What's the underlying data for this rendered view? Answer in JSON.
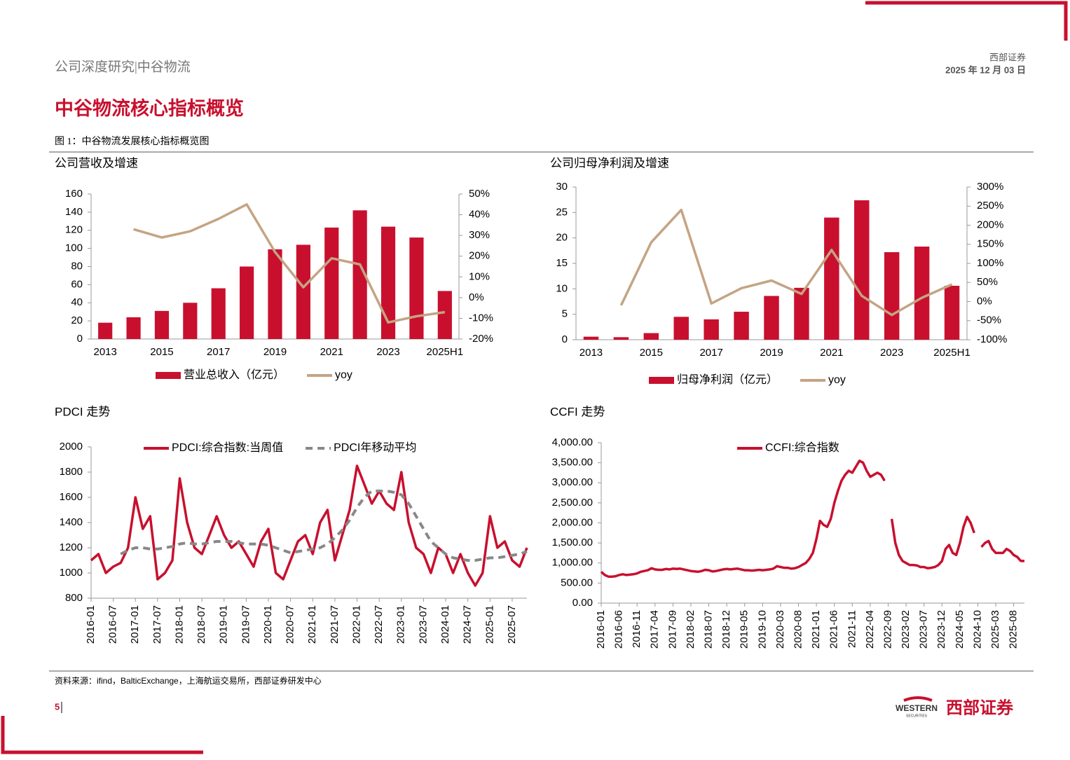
{
  "header": {
    "left": "公司深度研究|中谷物流",
    "brand": "西部证券",
    "date": "2025 年 12 月 03 日"
  },
  "section_title": "中谷物流核心指标概览",
  "figure_caption": "图 1：中谷物流发展核心指标概览图",
  "source": "资料来源：ifind，BalticExchange，上海航运交易所，西部证券研发中心",
  "page_number": "5",
  "logo": {
    "en": "WESTERN",
    "en_sub": "SECURITIES",
    "cn": "西部证券"
  },
  "chart_data": [
    {
      "type": "bar",
      "title": "公司营收及增速",
      "legend": "bottom",
      "categories": [
        "2013",
        null,
        "2015",
        null,
        "2017",
        null,
        "2019",
        null,
        "2021",
        null,
        "2023",
        null,
        "2025H1"
      ],
      "series": [
        {
          "name": "营业总收入（亿元）",
          "color": "#c8102e",
          "values": [
            18,
            24,
            31,
            40,
            56,
            80,
            99,
            104,
            123,
            142,
            124,
            112,
            53
          ]
        },
        {
          "name": "yoy",
          "color": "#c4a484",
          "type": "line",
          "axis": "y2",
          "values": [
            null,
            33,
            29,
            32,
            38,
            45,
            22,
            5,
            19,
            16,
            -12,
            -9,
            -7
          ]
        }
      ],
      "ylim": [
        0,
        160
      ],
      "yticks": [
        0,
        20,
        40,
        60,
        80,
        100,
        120,
        140,
        160
      ],
      "y2lim": [
        -20,
        50
      ],
      "y2ticks": [
        {
          "value": -20,
          "label": "-20%"
        },
        {
          "value": -10,
          "label": "-10%"
        },
        {
          "value": 0,
          "label": "0%"
        },
        {
          "value": 10,
          "label": "10%"
        },
        {
          "value": 20,
          "label": "20%"
        },
        {
          "value": 30,
          "label": "30%"
        },
        {
          "value": 40,
          "label": "40%"
        },
        {
          "value": 50,
          "label": "50%"
        }
      ]
    },
    {
      "type": "bar",
      "title": "公司归母净利润及增速",
      "legend": "bottom",
      "categories": [
        "2013",
        null,
        "2015",
        null,
        "2017",
        null,
        "2019",
        null,
        "2021",
        null,
        "2023",
        null,
        "2025H1"
      ],
      "series": [
        {
          "name": "归母净利润（亿元）",
          "color": "#c8102e",
          "values": [
            0.6,
            0.5,
            1.3,
            4.5,
            4.0,
            5.5,
            8.6,
            10.2,
            24,
            27.4,
            17.2,
            18.3,
            10.6
          ]
        },
        {
          "name": "yoy",
          "color": "#c4a484",
          "type": "line",
          "axis": "y2",
          "values": [
            null,
            -10,
            155,
            240,
            -5,
            35,
            55,
            20,
            135,
            15,
            -35,
            10,
            45
          ]
        }
      ],
      "ylim": [
        0,
        30
      ],
      "yticks": [
        0,
        5,
        10,
        15,
        20,
        25,
        30
      ],
      "y2lim": [
        -100,
        300
      ],
      "y2ticks": [
        {
          "value": -100,
          "label": "-100%"
        },
        {
          "value": -50,
          "label": "-50%"
        },
        {
          "value": 0,
          "label": "0%"
        },
        {
          "value": 50,
          "label": "50%"
        },
        {
          "value": 100,
          "label": "100%"
        },
        {
          "value": 150,
          "label": "150%"
        },
        {
          "value": 200,
          "label": "200%"
        },
        {
          "value": 250,
          "label": "250%"
        },
        {
          "value": 300,
          "label": "300%"
        }
      ]
    },
    {
      "type": "line",
      "title": "PDCI 走势",
      "legend": "top",
      "x": [
        "2016-01",
        null,
        null,
        "2016-07",
        null,
        null,
        "2017-01",
        null,
        null,
        "2017-07",
        null,
        null,
        "2018-01",
        null,
        null,
        "2018-07",
        null,
        null,
        "2019-01",
        null,
        null,
        "2019-07",
        null,
        null,
        "2020-01",
        null,
        null,
        "2020-07",
        null,
        null,
        "2021-01",
        null,
        null,
        "2021-07",
        null,
        null,
        "2022-01",
        null,
        null,
        "2022-07",
        null,
        null,
        "2023-01",
        null,
        null,
        "2023-07",
        null,
        null,
        "2024-01",
        null,
        null,
        "2024-07",
        null,
        null,
        "2025-01",
        null,
        null,
        "2025-07",
        null,
        null
      ],
      "series": [
        {
          "name": "PDCI:综合指数:当周值",
          "color": "#c8102e",
          "values": [
            1100,
            1150,
            1000,
            1050,
            1080,
            1200,
            1600,
            1350,
            1450,
            950,
            1000,
            1100,
            1750,
            1400,
            1200,
            1150,
            1300,
            1450,
            1300,
            1200,
            1250,
            1150,
            1050,
            1250,
            1350,
            1000,
            950,
            1100,
            1250,
            1300,
            1150,
            1400,
            1500,
            1100,
            1300,
            1500,
            1850,
            1700,
            1550,
            1650,
            1550,
            1500,
            1800,
            1400,
            1200,
            1150,
            1000,
            1200,
            1150,
            1000,
            1150,
            1000,
            900,
            1000,
            1450,
            1200,
            1250,
            1100,
            1050,
            1200
          ]
        },
        {
          "name": "PDCI年移动平均",
          "color": "#888888",
          "style": "dashed",
          "values": [
            null,
            null,
            null,
            null,
            1150,
            1180,
            1200,
            1200,
            1190,
            1190,
            1200,
            1210,
            1230,
            1240,
            1230,
            1230,
            1240,
            1250,
            1250,
            1250,
            1240,
            1230,
            1230,
            1230,
            1220,
            1200,
            1180,
            1160,
            1170,
            1180,
            1190,
            1200,
            1230,
            1280,
            1340,
            1420,
            1520,
            1600,
            1650,
            1650,
            1650,
            1640,
            1620,
            1550,
            1450,
            1350,
            1250,
            1200,
            1150,
            1120,
            1110,
            1100,
            1100,
            1110,
            1120,
            1120,
            1130,
            1140,
            1150,
            1170
          ]
        }
      ],
      "ylim": [
        800,
        2000
      ],
      "yticks": [
        800,
        1000,
        1200,
        1400,
        1600,
        1800,
        2000
      ]
    },
    {
      "type": "line",
      "title": "CCFI 走势",
      "legend": "top",
      "x": [
        "2016-01",
        null,
        null,
        null,
        null,
        "2016-06",
        null,
        null,
        null,
        null,
        "2016-11",
        null,
        null,
        null,
        null,
        "2017-04",
        null,
        null,
        null,
        null,
        "2017-09",
        null,
        null,
        null,
        null,
        "2018-02",
        null,
        null,
        null,
        null,
        "2018-07",
        null,
        null,
        null,
        null,
        "2018-12",
        null,
        null,
        null,
        null,
        "2019-05",
        null,
        null,
        null,
        null,
        "2019-10",
        null,
        null,
        null,
        null,
        "2020-03",
        null,
        null,
        null,
        null,
        "2020-08",
        null,
        null,
        null,
        null,
        "2021-01",
        null,
        null,
        null,
        null,
        "2021-06",
        null,
        null,
        null,
        null,
        "2021-11",
        null,
        null,
        null,
        null,
        "2022-04",
        null,
        null,
        null,
        null,
        "2022-09",
        null,
        null,
        null,
        null,
        "2023-02",
        null,
        null,
        null,
        null,
        "2023-07",
        null,
        null,
        null,
        null,
        "2023-12",
        null,
        null,
        null,
        null,
        "2024-05",
        null,
        null,
        null,
        null,
        "2024-10",
        null,
        null,
        null,
        null,
        "2025-03",
        null,
        null,
        null,
        null,
        "2025-08",
        null,
        null,
        null
      ],
      "series": [
        {
          "name": "CCFI:综合指数",
          "color": "#c8102e",
          "values": [
            780,
            700,
            660,
            660,
            670,
            700,
            720,
            700,
            710,
            720,
            740,
            780,
            800,
            820,
            870,
            840,
            830,
            830,
            850,
            840,
            860,
            850,
            860,
            840,
            820,
            800,
            790,
            780,
            800,
            830,
            820,
            790,
            800,
            820,
            840,
            850,
            840,
            850,
            860,
            840,
            820,
            820,
            810,
            820,
            830,
            820,
            830,
            840,
            860,
            920,
            900,
            880,
            880,
            860,
            870,
            900,
            950,
            1000,
            1100,
            1250,
            1600,
            2050,
            1950,
            1900,
            2100,
            2500,
            2800,
            3050,
            3200,
            3300,
            3250,
            3400,
            3550,
            3500,
            3300,
            3150,
            3200,
            3250,
            3200,
            3050,
            null,
            2100,
            1500,
            1200,
            1050,
            1000,
            950,
            950,
            940,
            900,
            900,
            870,
            880,
            900,
            950,
            1050,
            1350,
            1450,
            1250,
            1200,
            1500,
            1900,
            2150,
            2000,
            1750,
            null,
            1400,
            1500,
            1550,
            1350,
            1250,
            1250,
            1250,
            1350,
            1300,
            1200,
            1150,
            1050,
            1050
          ]
        }
      ],
      "ylim": [
        0,
        4000
      ],
      "yticks": [
        {
          "value": 0,
          "label": "0.00"
        },
        {
          "value": 500,
          "label": "500.00"
        },
        {
          "value": 1000,
          "label": "1,000.00"
        },
        {
          "value": 1500,
          "label": "1,500.00"
        },
        {
          "value": 2000,
          "label": "2,000.00"
        },
        {
          "value": 2500,
          "label": "2,500.00"
        },
        {
          "value": 3000,
          "label": "3,000.00"
        },
        {
          "value": 3500,
          "label": "3,500.00"
        },
        {
          "value": 4000,
          "label": "4,000.00"
        }
      ]
    }
  ]
}
